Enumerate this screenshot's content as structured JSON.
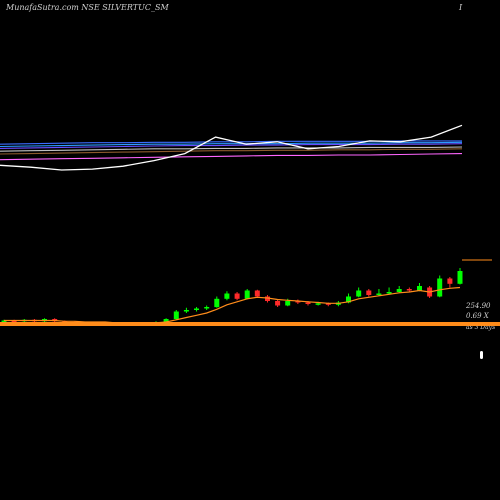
{
  "header": {
    "title": "MunafaSutra.com NSE SILVERTUC_SM",
    "marker": "I"
  },
  "price_labels": {
    "last_price": "254.90",
    "volume": "0.69 X",
    "avg_note": "as 3 Days"
  },
  "colors": {
    "background": "#000000",
    "up_candle": "#00ff00",
    "down_candle": "#ff2a2a",
    "price_ma": "#ff8c1a",
    "ema_band": "#ff8c1a",
    "index_line": "#ffffff",
    "ma_lines": [
      "#3b6cff",
      "#2a9dff",
      "#6a4cff",
      "#c0c0c0",
      "#8b5a2b",
      "#ff66ff"
    ]
  },
  "chart_data": [
    {
      "type": "line",
      "title": "",
      "note": "upper panel, moving averages and relative line, no axes printed",
      "series": [
        {
          "color": "#3b6cff",
          "values": [
            0.55,
            0.56,
            0.57,
            0.58,
            0.58,
            0.59,
            0.59,
            0.6,
            0.6,
            0.61,
            0.61,
            0.61,
            0.61,
            0.62,
            0.62,
            0.62
          ]
        },
        {
          "color": "#2a9dff",
          "values": [
            0.5,
            0.51,
            0.52,
            0.53,
            0.54,
            0.55,
            0.55,
            0.56,
            0.56,
            0.56,
            0.57,
            0.57,
            0.57,
            0.58,
            0.58,
            0.59
          ]
        },
        {
          "color": "#6a4cff",
          "values": [
            0.46,
            0.47,
            0.48,
            0.49,
            0.5,
            0.51,
            0.52,
            0.52,
            0.53,
            0.53,
            0.54,
            0.54,
            0.54,
            0.55,
            0.55,
            0.56
          ]
        },
        {
          "color": "#c0c0c0",
          "values": [
            0.4,
            0.41,
            0.42,
            0.43,
            0.44,
            0.45,
            0.45,
            0.46,
            0.46,
            0.47,
            0.47,
            0.47,
            0.48,
            0.48,
            0.48,
            0.49
          ]
        },
        {
          "color": "#8b5a2b",
          "values": [
            0.34,
            0.35,
            0.36,
            0.37,
            0.38,
            0.39,
            0.4,
            0.41,
            0.41,
            0.42,
            0.42,
            0.43,
            0.43,
            0.44,
            0.44,
            0.45
          ]
        },
        {
          "color": "#ff66ff",
          "values": [
            0.22,
            0.23,
            0.24,
            0.25,
            0.26,
            0.27,
            0.28,
            0.29,
            0.3,
            0.31,
            0.31,
            0.32,
            0.32,
            0.33,
            0.34,
            0.35
          ]
        },
        {
          "color": "#ffffff",
          "values": [
            0.1,
            0.06,
            0.0,
            0.02,
            0.08,
            0.2,
            0.35,
            0.7,
            0.55,
            0.6,
            0.45,
            0.5,
            0.62,
            0.6,
            0.7,
            0.95
          ]
        }
      ]
    },
    {
      "type": "candlestick",
      "title": "",
      "note": "daily candles with moving average, no axes printed",
      "candles": [
        {
          "o": 0.05,
          "c": 0.06,
          "h": 0.07,
          "l": 0.04
        },
        {
          "o": 0.06,
          "c": 0.05,
          "h": 0.07,
          "l": 0.04
        },
        {
          "o": 0.05,
          "c": 0.07,
          "h": 0.08,
          "l": 0.04
        },
        {
          "o": 0.07,
          "c": 0.05,
          "h": 0.08,
          "l": 0.04
        },
        {
          "o": 0.05,
          "c": 0.08,
          "h": 0.09,
          "l": 0.04
        },
        {
          "o": 0.08,
          "c": 0.05,
          "h": 0.09,
          "l": 0.03
        },
        {
          "o": 0.05,
          "c": 0.04,
          "h": 0.06,
          "l": 0.02
        },
        {
          "o": 0.04,
          "c": 0.03,
          "h": 0.05,
          "l": 0.01
        },
        {
          "o": 0.03,
          "c": 0.02,
          "h": 0.04,
          "l": 0.0
        },
        {
          "o": 0.02,
          "c": 0.03,
          "h": 0.04,
          "l": 0.0
        },
        {
          "o": 0.03,
          "c": 0.02,
          "h": 0.04,
          "l": 0.01
        },
        {
          "o": 0.02,
          "c": 0.03,
          "h": 0.04,
          "l": 0.01
        },
        {
          "o": 0.03,
          "c": 0.02,
          "h": 0.04,
          "l": 0.01
        },
        {
          "o": 0.02,
          "c": 0.03,
          "h": 0.04,
          "l": 0.01
        },
        {
          "o": 0.03,
          "c": 0.02,
          "h": 0.04,
          "l": 0.01
        },
        {
          "o": 0.02,
          "c": 0.04,
          "h": 0.05,
          "l": 0.01
        },
        {
          "o": 0.04,
          "c": 0.08,
          "h": 0.09,
          "l": 0.03
        },
        {
          "o": 0.08,
          "c": 0.18,
          "h": 0.2,
          "l": 0.07
        },
        {
          "o": 0.18,
          "c": 0.2,
          "h": 0.23,
          "l": 0.16
        },
        {
          "o": 0.2,
          "c": 0.22,
          "h": 0.24,
          "l": 0.18
        },
        {
          "o": 0.22,
          "c": 0.24,
          "h": 0.26,
          "l": 0.2
        },
        {
          "o": 0.24,
          "c": 0.35,
          "h": 0.38,
          "l": 0.23
        },
        {
          "o": 0.35,
          "c": 0.42,
          "h": 0.45,
          "l": 0.33
        },
        {
          "o": 0.42,
          "c": 0.35,
          "h": 0.44,
          "l": 0.33
        },
        {
          "o": 0.35,
          "c": 0.46,
          "h": 0.48,
          "l": 0.34
        },
        {
          "o": 0.46,
          "c": 0.38,
          "h": 0.47,
          "l": 0.36
        },
        {
          "o": 0.38,
          "c": 0.32,
          "h": 0.4,
          "l": 0.3
        },
        {
          "o": 0.32,
          "c": 0.26,
          "h": 0.34,
          "l": 0.24
        },
        {
          "o": 0.26,
          "c": 0.32,
          "h": 0.35,
          "l": 0.25
        },
        {
          "o": 0.32,
          "c": 0.3,
          "h": 0.34,
          "l": 0.28
        },
        {
          "o": 0.3,
          "c": 0.28,
          "h": 0.32,
          "l": 0.26
        },
        {
          "o": 0.28,
          "c": 0.29,
          "h": 0.31,
          "l": 0.26
        },
        {
          "o": 0.29,
          "c": 0.27,
          "h": 0.3,
          "l": 0.25
        },
        {
          "o": 0.27,
          "c": 0.3,
          "h": 0.32,
          "l": 0.25
        },
        {
          "o": 0.3,
          "c": 0.38,
          "h": 0.42,
          "l": 0.29
        },
        {
          "o": 0.38,
          "c": 0.46,
          "h": 0.5,
          "l": 0.37
        },
        {
          "o": 0.46,
          "c": 0.4,
          "h": 0.48,
          "l": 0.38
        },
        {
          "o": 0.4,
          "c": 0.42,
          "h": 0.48,
          "l": 0.39
        },
        {
          "o": 0.42,
          "c": 0.44,
          "h": 0.5,
          "l": 0.41
        },
        {
          "o": 0.44,
          "c": 0.48,
          "h": 0.52,
          "l": 0.43
        },
        {
          "o": 0.48,
          "c": 0.46,
          "h": 0.5,
          "l": 0.44
        },
        {
          "o": 0.46,
          "c": 0.52,
          "h": 0.56,
          "l": 0.45
        },
        {
          "o": 0.5,
          "c": 0.38,
          "h": 0.52,
          "l": 0.36
        },
        {
          "o": 0.38,
          "c": 0.62,
          "h": 0.66,
          "l": 0.37
        },
        {
          "o": 0.62,
          "c": 0.55,
          "h": 0.64,
          "l": 0.5
        },
        {
          "o": 0.55,
          "c": 0.72,
          "h": 0.76,
          "l": 0.54
        }
      ],
      "ma": [
        0.06,
        0.06,
        0.06,
        0.06,
        0.06,
        0.06,
        0.05,
        0.05,
        0.04,
        0.04,
        0.04,
        0.03,
        0.03,
        0.03,
        0.03,
        0.03,
        0.04,
        0.07,
        0.1,
        0.13,
        0.16,
        0.21,
        0.27,
        0.31,
        0.35,
        0.37,
        0.36,
        0.34,
        0.33,
        0.32,
        0.31,
        0.3,
        0.29,
        0.29,
        0.31,
        0.35,
        0.37,
        0.39,
        0.41,
        0.43,
        0.44,
        0.46,
        0.44,
        0.47,
        0.49,
        0.5
      ]
    }
  ]
}
